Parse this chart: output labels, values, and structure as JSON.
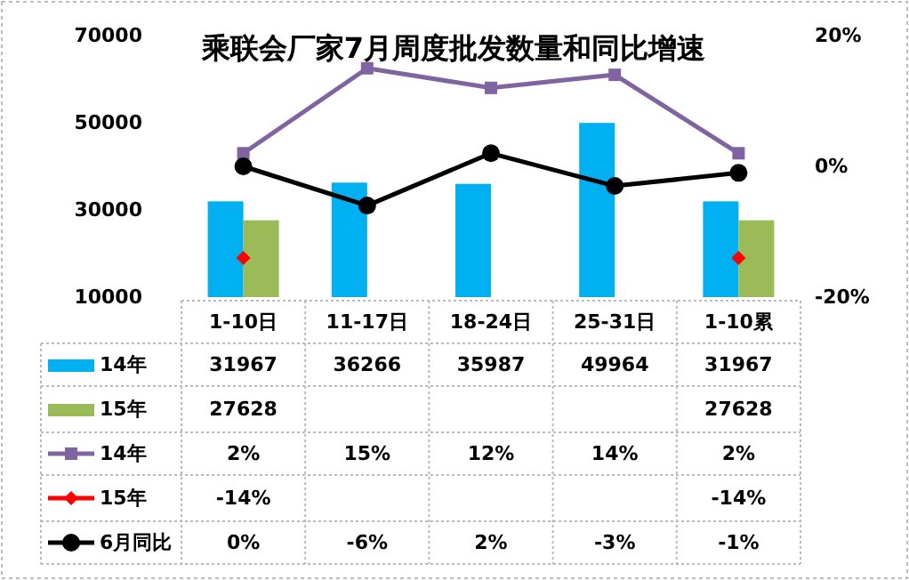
{
  "chart_data": {
    "type": "bar",
    "title": "乘联会厂家7月周度批发数量和同比增速",
    "categories": [
      "1-10日",
      "11-17日",
      "18-24日",
      "25-31日",
      "1-10累"
    ],
    "series": [
      {
        "name": "14年",
        "color": "#00b0f0",
        "values": [
          31967,
          36266,
          35987,
          49964,
          31967
        ],
        "value_labels": [
          "31967",
          "36266",
          "35987",
          "49964",
          "31967"
        ]
      },
      {
        "name": "15年",
        "color": "#9bbb59",
        "values": [
          27628,
          null,
          null,
          null,
          27628
        ],
        "value_labels": [
          "27628",
          null,
          null,
          null,
          "27628"
        ]
      },
      {
        "name": "14年",
        "type": "line",
        "axis": "y2",
        "color": "#8064a2",
        "marker": "square",
        "values": [
          2,
          15,
          12,
          14,
          2
        ],
        "value_labels": [
          "2%",
          "15%",
          "12%",
          "14%",
          "2%"
        ]
      },
      {
        "name": "15年",
        "type": "scatter",
        "axis": "y2",
        "color": "#ff0000",
        "marker": "diamond",
        "values": [
          -14,
          null,
          null,
          null,
          -14
        ],
        "value_labels": [
          "-14%",
          null,
          null,
          null,
          "-14%"
        ]
      },
      {
        "name": "6月同比",
        "type": "line",
        "axis": "y2",
        "color": "#000000",
        "marker": "circle",
        "values": [
          0,
          -6,
          2,
          -3,
          -1
        ],
        "value_labels": [
          "0%",
          "-6%",
          "2%",
          "-3%",
          "-1%"
        ]
      }
    ],
    "ylim": [
      10000,
      70000
    ],
    "yticks": [
      10000,
      30000,
      50000,
      70000
    ],
    "y2lim": [
      -20,
      20
    ],
    "y2ticks": [
      {
        "value": -20,
        "label": "-20%"
      },
      {
        "value": 0,
        "label": "0%"
      },
      {
        "value": 20,
        "label": "20%"
      }
    ],
    "legend": "bottom",
    "grid": false
  }
}
